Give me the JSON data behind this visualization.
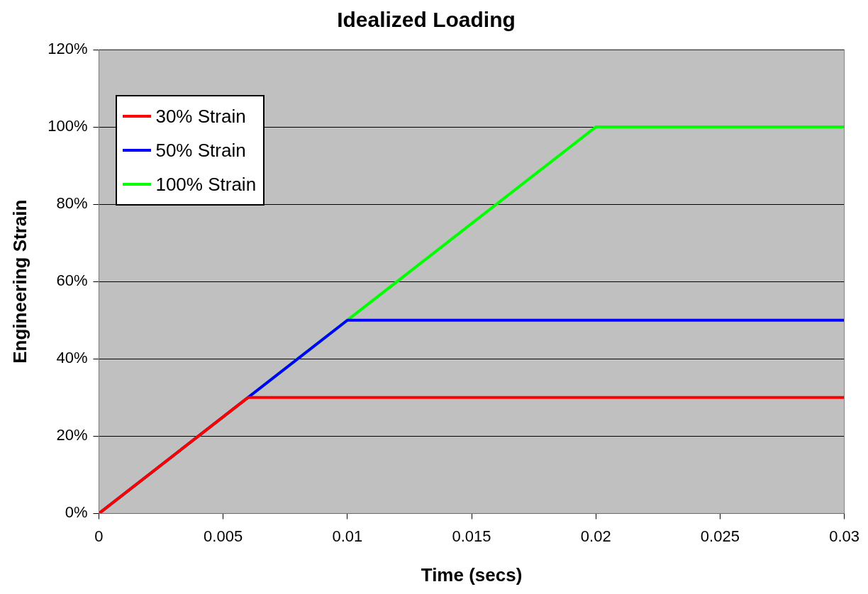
{
  "chart_data": {
    "type": "line",
    "title": "Idealized Loading",
    "xlabel": "Time (secs)",
    "ylabel": "Engineering Strain",
    "xlim": [
      0,
      0.03
    ],
    "xticks": [
      0,
      0.005,
      0.01,
      0.015,
      0.02,
      0.025,
      0.03
    ],
    "ylim": [
      0,
      120
    ],
    "yticks": [
      {
        "value": 0,
        "label": "0%"
      },
      {
        "value": 20,
        "label": "20%"
      },
      {
        "value": 40,
        "label": "40%"
      },
      {
        "value": 60,
        "label": "60%"
      },
      {
        "value": 80,
        "label": "80%"
      },
      {
        "value": 100,
        "label": "100%"
      },
      {
        "value": 120,
        "label": "120%"
      }
    ],
    "grid": "y",
    "legend": "top left",
    "marker": "none",
    "line_style": "solid",
    "series": [
      {
        "name": "30% Strain",
        "color": "#ff0000",
        "x": [
          0,
          0.006,
          0.03
        ],
        "values": [
          0,
          30,
          30
        ]
      },
      {
        "name": "50% Strain",
        "color": "#0000ff",
        "x": [
          0,
          0.01,
          0.03
        ],
        "values": [
          0,
          50,
          50
        ]
      },
      {
        "name": "100% Strain",
        "color": "#00ff00",
        "x": [
          0,
          0.02,
          0.03
        ],
        "values": [
          0,
          100,
          100
        ]
      }
    ]
  }
}
